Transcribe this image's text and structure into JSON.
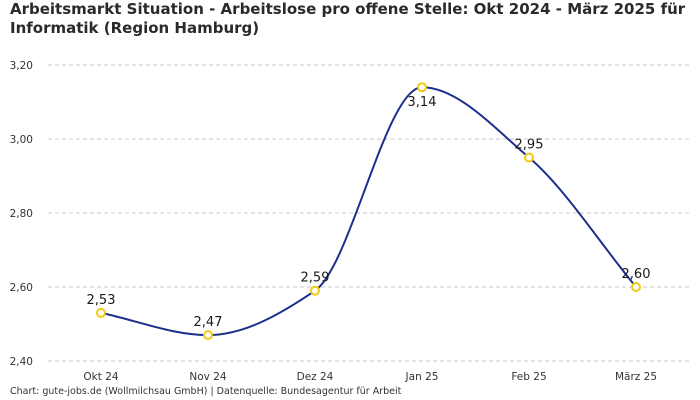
{
  "chart_data": {
    "type": "line",
    "title": "Arbeitsmarkt Situation - Arbeitslose pro offene Stelle: Okt 2024 - März 2025 für Informatik (Region Hamburg)",
    "categories": [
      "Okt 24",
      "Nov 24",
      "Dez 24",
      "Jan 25",
      "Feb 25",
      "März 25"
    ],
    "values": [
      2.53,
      2.47,
      2.59,
      3.14,
      2.95,
      2.6
    ],
    "value_labels": [
      "2,53",
      "2,47",
      "2,59",
      "3,14",
      "2,95",
      "2,60"
    ],
    "ylim": [
      2.4,
      3.2
    ],
    "yticks": [
      2.4,
      2.6,
      2.8,
      3.0,
      3.2
    ],
    "ytick_labels": [
      "2,40",
      "2,60",
      "2,80",
      "3,00",
      "3,20"
    ],
    "xlabel": "",
    "ylabel": "",
    "grid": true,
    "line_color": "#1c2f8c",
    "marker_color": "#f2c811",
    "footer": "Chart: gute-jobs.de (Wollmilchsau GmbH) | Datenquelle: Bundesagentur für Arbeit"
  }
}
